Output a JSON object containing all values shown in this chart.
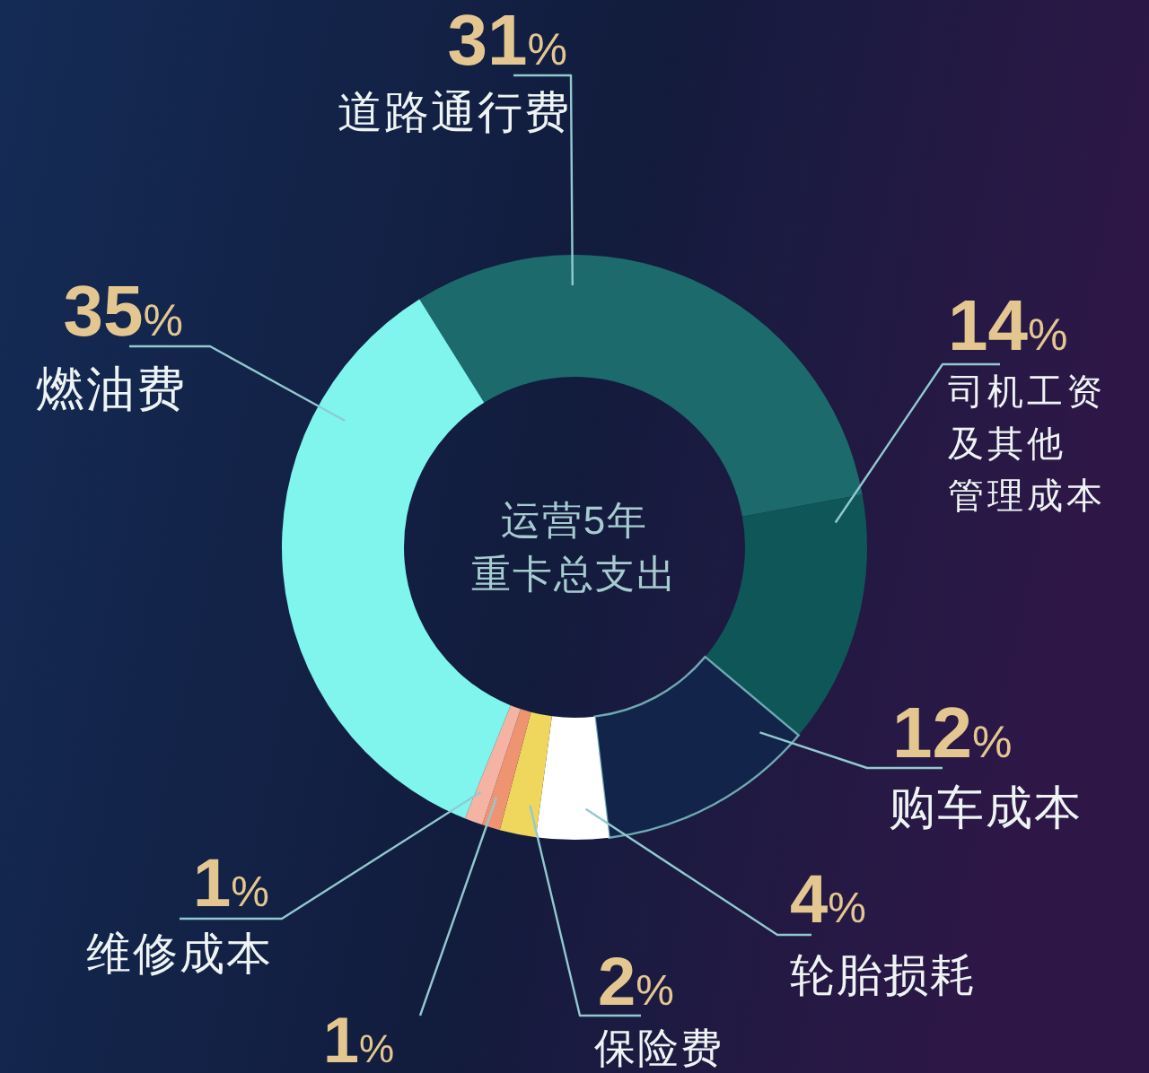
{
  "chart_data": {
    "type": "donut",
    "title": "运营5年",
    "subtitle": "重卡总支出",
    "categories": [
      "道路通行费",
      "司机工资及其他管理成本",
      "购车成本",
      "轮胎损耗",
      "保险费",
      null,
      "维修成本",
      "燃油费"
    ],
    "values": [
      31,
      14,
      12,
      4,
      2,
      1,
      1,
      35
    ],
    "colors": [
      "#1c6a6c",
      "#0f5659",
      "#13244a",
      "#ffffff",
      "#efd75e",
      "#ee9470",
      "#f4b3a3",
      "#80f5ee"
    ],
    "value_labels": [
      "31%",
      "14%",
      "12%",
      "4%",
      "2%",
      "1%",
      "1%",
      "35%"
    ]
  }
}
